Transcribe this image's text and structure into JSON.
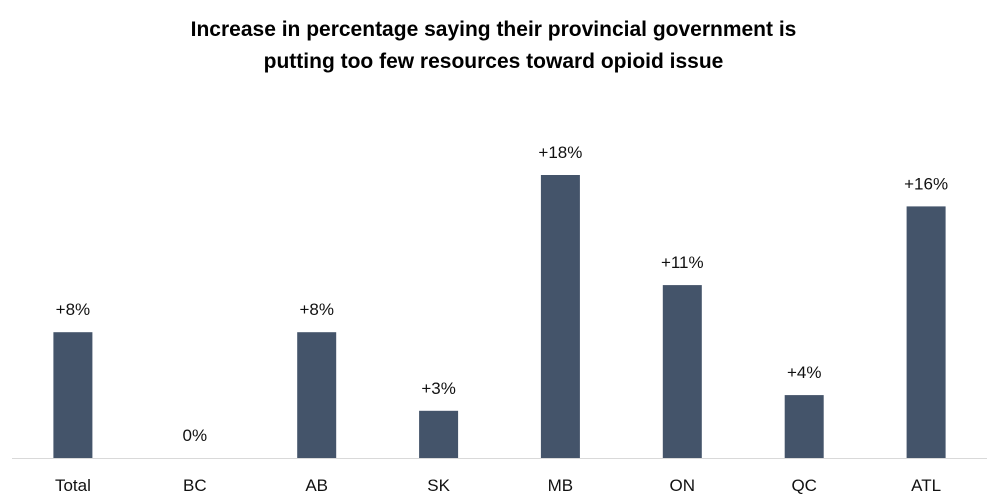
{
  "chart_data": {
    "type": "bar",
    "title_lines": [
      "Increase in percentage saying their provincial government is",
      "putting too few resources toward opioid issue"
    ],
    "categories": [
      "Total",
      "BC",
      "AB",
      "SK",
      "MB",
      "ON",
      "QC",
      "ATL"
    ],
    "values": [
      8,
      0,
      8,
      3,
      18,
      11,
      4,
      16
    ],
    "data_labels": [
      "+8%",
      "0%",
      "+8%",
      "+3%",
      "+18%",
      "+11%",
      "+4%",
      "+16%"
    ],
    "xlabel": "",
    "ylabel": "",
    "ylim": [
      0,
      18
    ],
    "grid": false,
    "legend": "none",
    "bar_color": "#44546a",
    "axis_color": "#d9d9d9"
  }
}
